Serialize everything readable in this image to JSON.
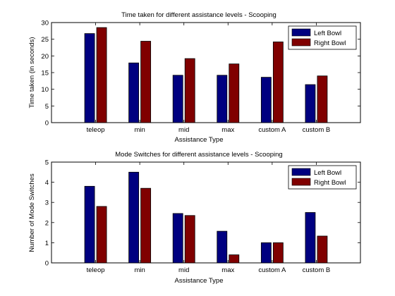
{
  "chart_data": [
    {
      "type": "bar",
      "title": "Time taken for different assistance levels - Scooping",
      "xlabel": "Assistance Type",
      "ylabel": "Time taken (in seconds)",
      "categories": [
        "teleop",
        "min",
        "mid",
        "max",
        "custom A",
        "custom B"
      ],
      "series": [
        {
          "name": "Left Bowl",
          "values": [
            26.7,
            17.9,
            14.2,
            14.2,
            13.6,
            11.4
          ],
          "color": "#000080"
        },
        {
          "name": "Right Bowl",
          "values": [
            28.5,
            24.4,
            19.2,
            17.6,
            24.2,
            14.0
          ],
          "color": "#800000"
        }
      ],
      "ylim": [
        0,
        30
      ],
      "yticks": [
        "0",
        "5",
        "10",
        "15",
        "20",
        "25",
        "30"
      ],
      "legend_position": "top-right",
      "grid": false
    },
    {
      "type": "bar",
      "title": "Mode Switches for different assistance levels - Scooping",
      "xlabel": "Assistance Type",
      "ylabel": "Number of Mode Switches",
      "categories": [
        "teleop",
        "min",
        "mid",
        "max",
        "custom A",
        "custom B"
      ],
      "series": [
        {
          "name": "Left Bowl",
          "values": [
            3.8,
            4.5,
            2.45,
            1.57,
            1.0,
            2.5
          ],
          "color": "#000080"
        },
        {
          "name": "Right Bowl",
          "values": [
            2.8,
            3.7,
            2.35,
            0.4,
            1.0,
            1.33
          ],
          "color": "#800000"
        }
      ],
      "ylim": [
        0,
        5
      ],
      "yticks": [
        "0",
        "1",
        "2",
        "3",
        "4",
        "5"
      ],
      "legend_position": "top-right",
      "grid": false
    }
  ]
}
